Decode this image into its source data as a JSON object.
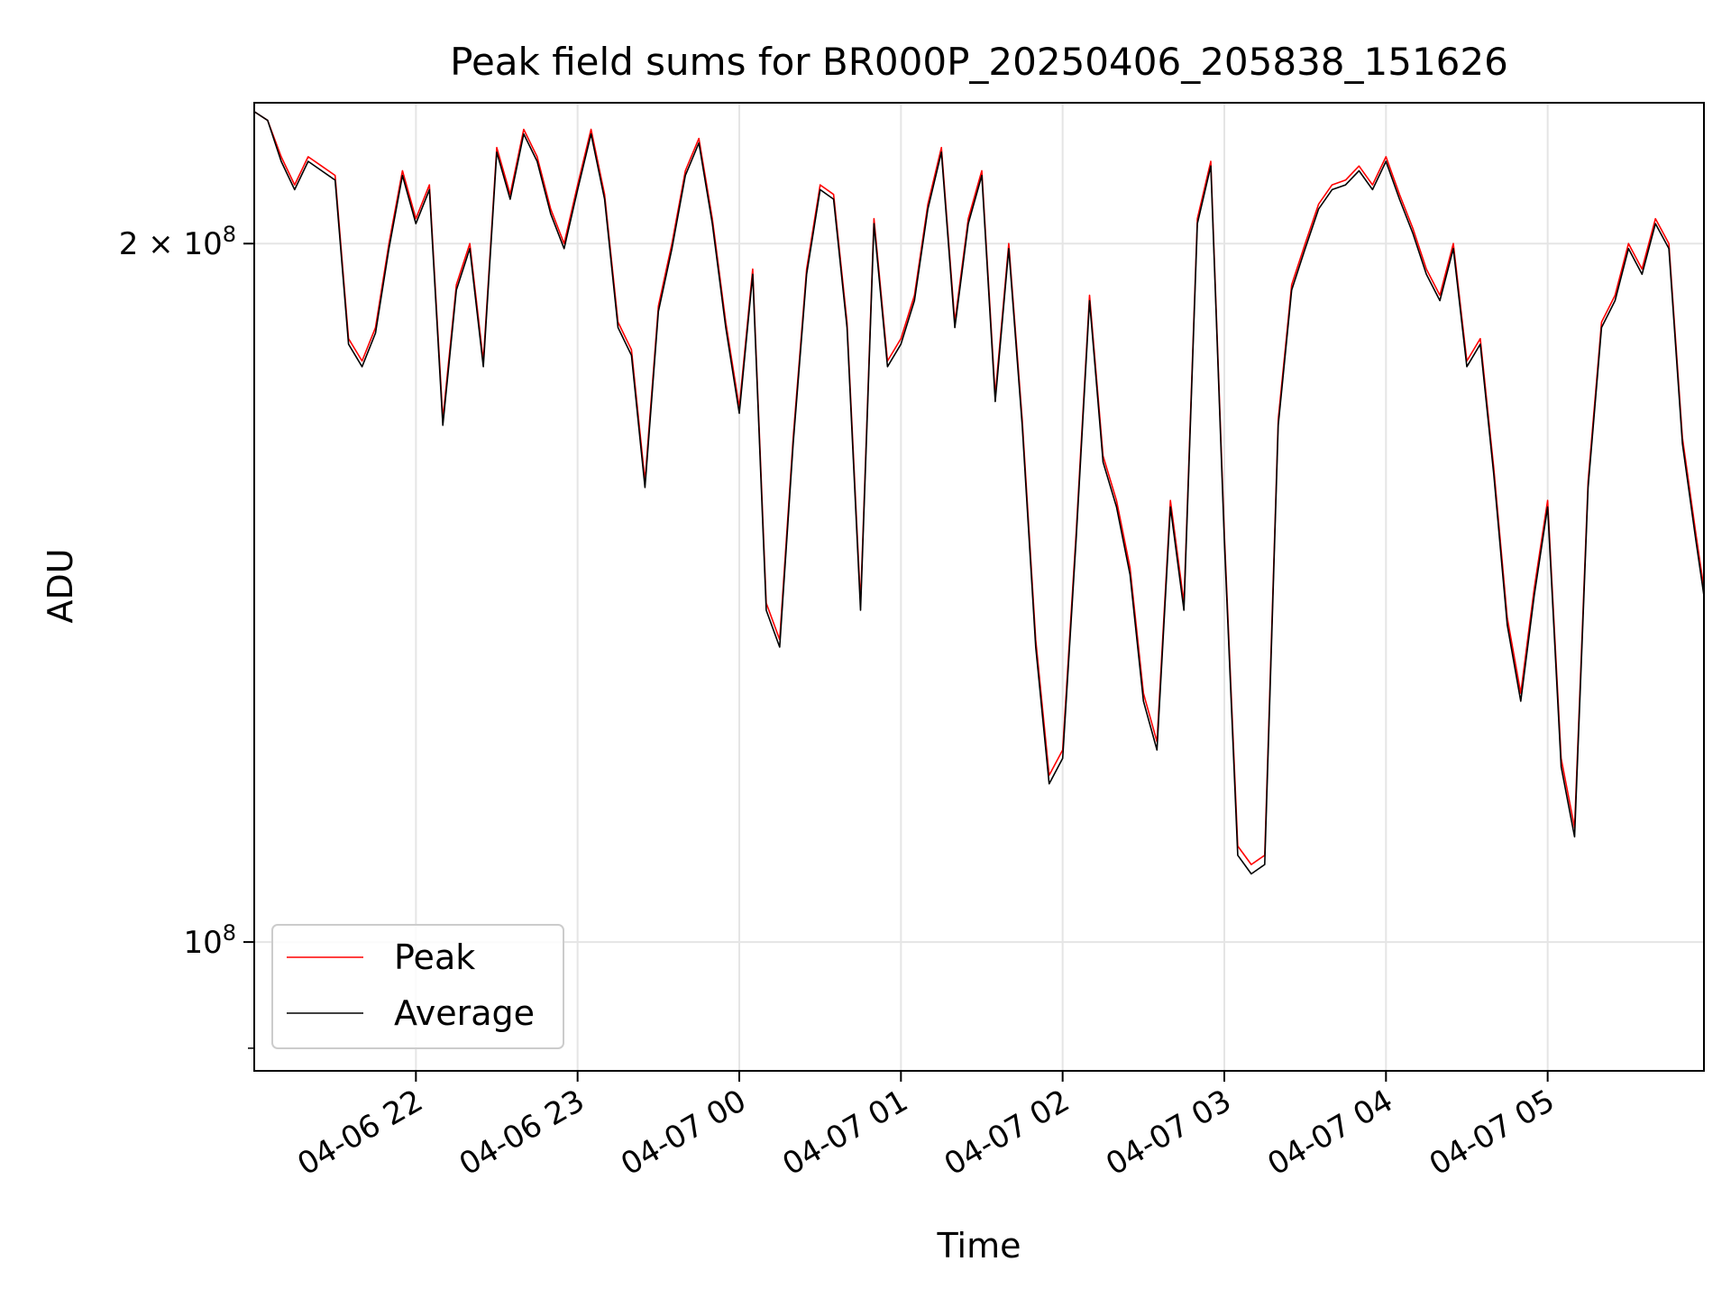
{
  "chart_data": {
    "type": "line",
    "title": "Peak field sums for BR000P_20250406_205838_151626",
    "xlabel": "Time",
    "ylabel": "ADU",
    "y_scale": "log",
    "ylim": [
      88000000,
      230000000
    ],
    "xlim": [
      "2025-04-06 21:00",
      "2025-04-07 05:58"
    ],
    "grid": true,
    "legend_position": "lower-left",
    "x_ticks": [
      {
        "time": "2025-04-06 22:00",
        "label": "04-06 22"
      },
      {
        "time": "2025-04-06 23:00",
        "label": "04-06 23"
      },
      {
        "time": "2025-04-07 00:00",
        "label": "04-07 00"
      },
      {
        "time": "2025-04-07 01:00",
        "label": "04-07 01"
      },
      {
        "time": "2025-04-07 02:00",
        "label": "04-07 02"
      },
      {
        "time": "2025-04-07 03:00",
        "label": "04-07 03"
      },
      {
        "time": "2025-04-07 04:00",
        "label": "04-07 04"
      },
      {
        "time": "2025-04-07 05:00",
        "label": "04-07 05"
      }
    ],
    "y_ticks": [
      {
        "value": 200000000,
        "label_base": "2 × 10",
        "label_exp": "8"
      },
      {
        "value": 100000000,
        "label_base": "10",
        "label_exp": "8"
      }
    ],
    "y_minor_ticks": [
      90000000
    ],
    "series": [
      {
        "name": "Peak",
        "color": "#ff0000",
        "points": [
          [
            "2025-04-06 21:00",
            228000000
          ],
          [
            "2025-04-06 21:05",
            226000000
          ],
          [
            "2025-04-06 21:10",
            218000000
          ],
          [
            "2025-04-06 21:15",
            212000000
          ],
          [
            "2025-04-06 21:20",
            218000000
          ],
          [
            "2025-04-06 21:25",
            216000000
          ],
          [
            "2025-04-06 21:30",
            214000000
          ],
          [
            "2025-04-06 21:35",
            182000000
          ],
          [
            "2025-04-06 21:40",
            178000000
          ],
          [
            "2025-04-06 21:45",
            184000000
          ],
          [
            "2025-04-06 21:50",
            200000000
          ],
          [
            "2025-04-06 21:55",
            215000000
          ],
          [
            "2025-04-06 22:00",
            205000000
          ],
          [
            "2025-04-06 22:05",
            212000000
          ],
          [
            "2025-04-06 22:10",
            168000000
          ],
          [
            "2025-04-06 22:15",
            192000000
          ],
          [
            "2025-04-06 22:20",
            200000000
          ],
          [
            "2025-04-06 22:25",
            178000000
          ],
          [
            "2025-04-06 22:30",
            220000000
          ],
          [
            "2025-04-06 22:35",
            210000000
          ],
          [
            "2025-04-06 22:40",
            224000000
          ],
          [
            "2025-04-06 22:45",
            218000000
          ],
          [
            "2025-04-06 22:50",
            207000000
          ],
          [
            "2025-04-06 22:55",
            200000000
          ],
          [
            "2025-04-06 23:00",
            212000000
          ],
          [
            "2025-04-06 23:05",
            224000000
          ],
          [
            "2025-04-06 23:10",
            210000000
          ],
          [
            "2025-04-06 23:15",
            185000000
          ],
          [
            "2025-04-06 23:20",
            180000000
          ],
          [
            "2025-04-06 23:25",
            158000000
          ],
          [
            "2025-04-06 23:30",
            188000000
          ],
          [
            "2025-04-06 23:35",
            200000000
          ],
          [
            "2025-04-06 23:40",
            215000000
          ],
          [
            "2025-04-06 23:45",
            222000000
          ],
          [
            "2025-04-06 23:50",
            205000000
          ],
          [
            "2025-04-06 23:55",
            185000000
          ],
          [
            "2025-04-07 00:00",
            170000000
          ],
          [
            "2025-04-07 00:05",
            195000000
          ],
          [
            "2025-04-07 00:10",
            140000000
          ],
          [
            "2025-04-07 00:15",
            135000000
          ],
          [
            "2025-04-07 00:20",
            165000000
          ],
          [
            "2025-04-07 00:25",
            195000000
          ],
          [
            "2025-04-07 00:30",
            212000000
          ],
          [
            "2025-04-07 00:35",
            210000000
          ],
          [
            "2025-04-07 00:40",
            185000000
          ],
          [
            "2025-04-07 00:45",
            140000000
          ],
          [
            "2025-04-07 00:50",
            205000000
          ],
          [
            "2025-04-07 00:55",
            178000000
          ],
          [
            "2025-04-07 01:00",
            182000000
          ],
          [
            "2025-04-07 01:05",
            190000000
          ],
          [
            "2025-04-07 01:10",
            208000000
          ],
          [
            "2025-04-07 01:15",
            220000000
          ],
          [
            "2025-04-07 01:20",
            185000000
          ],
          [
            "2025-04-07 01:25",
            205000000
          ],
          [
            "2025-04-07 01:30",
            215000000
          ],
          [
            "2025-04-07 01:35",
            172000000
          ],
          [
            "2025-04-07 01:40",
            200000000
          ],
          [
            "2025-04-07 01:45",
            168000000
          ],
          [
            "2025-04-07 01:50",
            135000000
          ],
          [
            "2025-04-07 01:55",
            118000000
          ],
          [
            "2025-04-07 02:00",
            121000000
          ],
          [
            "2025-04-07 02:05",
            150000000
          ],
          [
            "2025-04-07 02:10",
            190000000
          ],
          [
            "2025-04-07 02:15",
            162000000
          ],
          [
            "2025-04-07 02:20",
            155000000
          ],
          [
            "2025-04-07 02:25",
            145000000
          ],
          [
            "2025-04-07 02:30",
            128000000
          ],
          [
            "2025-04-07 02:35",
            122000000
          ],
          [
            "2025-04-07 02:40",
            155000000
          ],
          [
            "2025-04-07 02:45",
            140000000
          ],
          [
            "2025-04-07 02:50",
            205000000
          ],
          [
            "2025-04-07 02:55",
            217000000
          ],
          [
            "2025-04-07 03:00",
            150000000
          ],
          [
            "2025-04-07 03:05",
            110000000
          ],
          [
            "2025-04-07 03:10",
            108000000
          ],
          [
            "2025-04-07 03:15",
            109000000
          ],
          [
            "2025-04-07 03:20",
            168000000
          ],
          [
            "2025-04-07 03:25",
            192000000
          ],
          [
            "2025-04-07 03:30",
            200000000
          ],
          [
            "2025-04-07 03:35",
            208000000
          ],
          [
            "2025-04-07 03:40",
            212000000
          ],
          [
            "2025-04-07 03:45",
            213000000
          ],
          [
            "2025-04-07 03:50",
            216000000
          ],
          [
            "2025-04-07 03:55",
            212000000
          ],
          [
            "2025-04-07 04:00",
            218000000
          ],
          [
            "2025-04-07 04:05",
            210000000
          ],
          [
            "2025-04-07 04:10",
            203000000
          ],
          [
            "2025-04-07 04:15",
            195000000
          ],
          [
            "2025-04-07 04:20",
            190000000
          ],
          [
            "2025-04-07 04:25",
            200000000
          ],
          [
            "2025-04-07 04:30",
            178000000
          ],
          [
            "2025-04-07 04:35",
            182000000
          ],
          [
            "2025-04-07 04:40",
            160000000
          ],
          [
            "2025-04-07 04:45",
            138000000
          ],
          [
            "2025-04-07 04:50",
            128000000
          ],
          [
            "2025-04-07 04:55",
            142000000
          ],
          [
            "2025-04-07 05:00",
            155000000
          ],
          [
            "2025-04-07 05:05",
            120000000
          ],
          [
            "2025-04-07 05:10",
            112000000
          ],
          [
            "2025-04-07 05:15",
            158000000
          ],
          [
            "2025-04-07 05:20",
            185000000
          ],
          [
            "2025-04-07 05:25",
            190000000
          ],
          [
            "2025-04-07 05:30",
            200000000
          ],
          [
            "2025-04-07 05:35",
            195000000
          ],
          [
            "2025-04-07 05:40",
            205000000
          ],
          [
            "2025-04-07 05:45",
            200000000
          ],
          [
            "2025-04-07 05:50",
            165000000
          ],
          [
            "2025-04-07 05:55",
            150000000
          ],
          [
            "2025-04-07 05:58",
            142000000
          ]
        ]
      },
      {
        "name": "Average",
        "color": "#000000",
        "points": [
          [
            "2025-04-06 21:00",
            228000000
          ],
          [
            "2025-04-06 21:05",
            226000000
          ],
          [
            "2025-04-06 21:10",
            217000000
          ],
          [
            "2025-04-06 21:15",
            211000000
          ],
          [
            "2025-04-06 21:20",
            217000000
          ],
          [
            "2025-04-06 21:25",
            215000000
          ],
          [
            "2025-04-06 21:30",
            213000000
          ],
          [
            "2025-04-06 21:35",
            181000000
          ],
          [
            "2025-04-06 21:40",
            177000000
          ],
          [
            "2025-04-06 21:45",
            183000000
          ],
          [
            "2025-04-06 21:50",
            199000000
          ],
          [
            "2025-04-06 21:55",
            214000000
          ],
          [
            "2025-04-06 22:00",
            204000000
          ],
          [
            "2025-04-06 22:05",
            211000000
          ],
          [
            "2025-04-06 22:10",
            167000000
          ],
          [
            "2025-04-06 22:15",
            191000000
          ],
          [
            "2025-04-06 22:20",
            199000000
          ],
          [
            "2025-04-06 22:25",
            177000000
          ],
          [
            "2025-04-06 22:30",
            219000000
          ],
          [
            "2025-04-06 22:35",
            209000000
          ],
          [
            "2025-04-06 22:40",
            223000000
          ],
          [
            "2025-04-06 22:45",
            217000000
          ],
          [
            "2025-04-06 22:50",
            206000000
          ],
          [
            "2025-04-06 22:55",
            199000000
          ],
          [
            "2025-04-06 23:00",
            211000000
          ],
          [
            "2025-04-06 23:05",
            223000000
          ],
          [
            "2025-04-06 23:10",
            209000000
          ],
          [
            "2025-04-06 23:15",
            184000000
          ],
          [
            "2025-04-06 23:20",
            179000000
          ],
          [
            "2025-04-06 23:25",
            157000000
          ],
          [
            "2025-04-06 23:30",
            187000000
          ],
          [
            "2025-04-06 23:35",
            199000000
          ],
          [
            "2025-04-06 23:40",
            214000000
          ],
          [
            "2025-04-06 23:45",
            221000000
          ],
          [
            "2025-04-06 23:50",
            204000000
          ],
          [
            "2025-04-06 23:55",
            184000000
          ],
          [
            "2025-04-07 00:00",
            169000000
          ],
          [
            "2025-04-07 00:05",
            194000000
          ],
          [
            "2025-04-07 00:10",
            139000000
          ],
          [
            "2025-04-07 00:15",
            134000000
          ],
          [
            "2025-04-07 00:20",
            164000000
          ],
          [
            "2025-04-07 00:25",
            194000000
          ],
          [
            "2025-04-07 00:30",
            211000000
          ],
          [
            "2025-04-07 00:35",
            209000000
          ],
          [
            "2025-04-07 00:40",
            184000000
          ],
          [
            "2025-04-07 00:45",
            139000000
          ],
          [
            "2025-04-07 00:50",
            204000000
          ],
          [
            "2025-04-07 00:55",
            177000000
          ],
          [
            "2025-04-07 01:00",
            181000000
          ],
          [
            "2025-04-07 01:05",
            189000000
          ],
          [
            "2025-04-07 01:10",
            207000000
          ],
          [
            "2025-04-07 01:15",
            219000000
          ],
          [
            "2025-04-07 01:20",
            184000000
          ],
          [
            "2025-04-07 01:25",
            204000000
          ],
          [
            "2025-04-07 01:30",
            214000000
          ],
          [
            "2025-04-07 01:35",
            171000000
          ],
          [
            "2025-04-07 01:40",
            199000000
          ],
          [
            "2025-04-07 01:45",
            167000000
          ],
          [
            "2025-04-07 01:50",
            134000000
          ],
          [
            "2025-04-07 01:55",
            117000000
          ],
          [
            "2025-04-07 02:00",
            120000000
          ],
          [
            "2025-04-07 02:05",
            149000000
          ],
          [
            "2025-04-07 02:10",
            189000000
          ],
          [
            "2025-04-07 02:15",
            161000000
          ],
          [
            "2025-04-07 02:20",
            154000000
          ],
          [
            "2025-04-07 02:25",
            144000000
          ],
          [
            "2025-04-07 02:30",
            127000000
          ],
          [
            "2025-04-07 02:35",
            121000000
          ],
          [
            "2025-04-07 02:40",
            154000000
          ],
          [
            "2025-04-07 02:45",
            139000000
          ],
          [
            "2025-04-07 02:50",
            204000000
          ],
          [
            "2025-04-07 02:55",
            216000000
          ],
          [
            "2025-04-07 03:00",
            149000000
          ],
          [
            "2025-04-07 03:05",
            109000000
          ],
          [
            "2025-04-07 03:10",
            107000000
          ],
          [
            "2025-04-07 03:15",
            108000000
          ],
          [
            "2025-04-07 03:20",
            167000000
          ],
          [
            "2025-04-07 03:25",
            191000000
          ],
          [
            "2025-04-07 03:30",
            199000000
          ],
          [
            "2025-04-07 03:35",
            207000000
          ],
          [
            "2025-04-07 03:40",
            211000000
          ],
          [
            "2025-04-07 03:45",
            212000000
          ],
          [
            "2025-04-07 03:50",
            215000000
          ],
          [
            "2025-04-07 03:55",
            211000000
          ],
          [
            "2025-04-07 04:00",
            217000000
          ],
          [
            "2025-04-07 04:05",
            209000000
          ],
          [
            "2025-04-07 04:10",
            202000000
          ],
          [
            "2025-04-07 04:15",
            194000000
          ],
          [
            "2025-04-07 04:20",
            189000000
          ],
          [
            "2025-04-07 04:25",
            199000000
          ],
          [
            "2025-04-07 04:30",
            177000000
          ],
          [
            "2025-04-07 04:35",
            181000000
          ],
          [
            "2025-04-07 04:40",
            159000000
          ],
          [
            "2025-04-07 04:45",
            137000000
          ],
          [
            "2025-04-07 04:50",
            127000000
          ],
          [
            "2025-04-07 04:55",
            141000000
          ],
          [
            "2025-04-07 05:00",
            154000000
          ],
          [
            "2025-04-07 05:05",
            119000000
          ],
          [
            "2025-04-07 05:10",
            111000000
          ],
          [
            "2025-04-07 05:15",
            157000000
          ],
          [
            "2025-04-07 05:20",
            184000000
          ],
          [
            "2025-04-07 05:25",
            189000000
          ],
          [
            "2025-04-07 05:30",
            199000000
          ],
          [
            "2025-04-07 05:35",
            194000000
          ],
          [
            "2025-04-07 05:40",
            204000000
          ],
          [
            "2025-04-07 05:45",
            199000000
          ],
          [
            "2025-04-07 05:50",
            164000000
          ],
          [
            "2025-04-07 05:55",
            149000000
          ],
          [
            "2025-04-07 05:58",
            141000000
          ]
        ]
      }
    ]
  },
  "colors": {
    "grid": "#e5e5e5",
    "axis": "#000000",
    "legend_border": "#cccccc",
    "peak": "#ff0000",
    "average": "#000000"
  }
}
